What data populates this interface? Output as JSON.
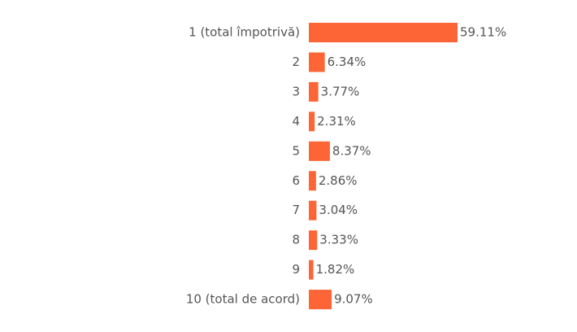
{
  "chart_data": {
    "type": "hbar",
    "categories": [
      "1 (total împotrivă)",
      "2",
      "3",
      "4",
      "5",
      "6",
      "7",
      "8",
      "9",
      "10 (total de acord)"
    ],
    "values": [
      59.11,
      6.34,
      3.77,
      2.31,
      8.37,
      2.86,
      3.04,
      3.33,
      1.82,
      9.07
    ],
    "value_labels": [
      "59.11%",
      "6.34%",
      "3.77%",
      "2.31%",
      "8.37%",
      "2.86%",
      "3.04%",
      "3.33%",
      "1.82%",
      "9.07%"
    ],
    "color": "#fd6536"
  }
}
